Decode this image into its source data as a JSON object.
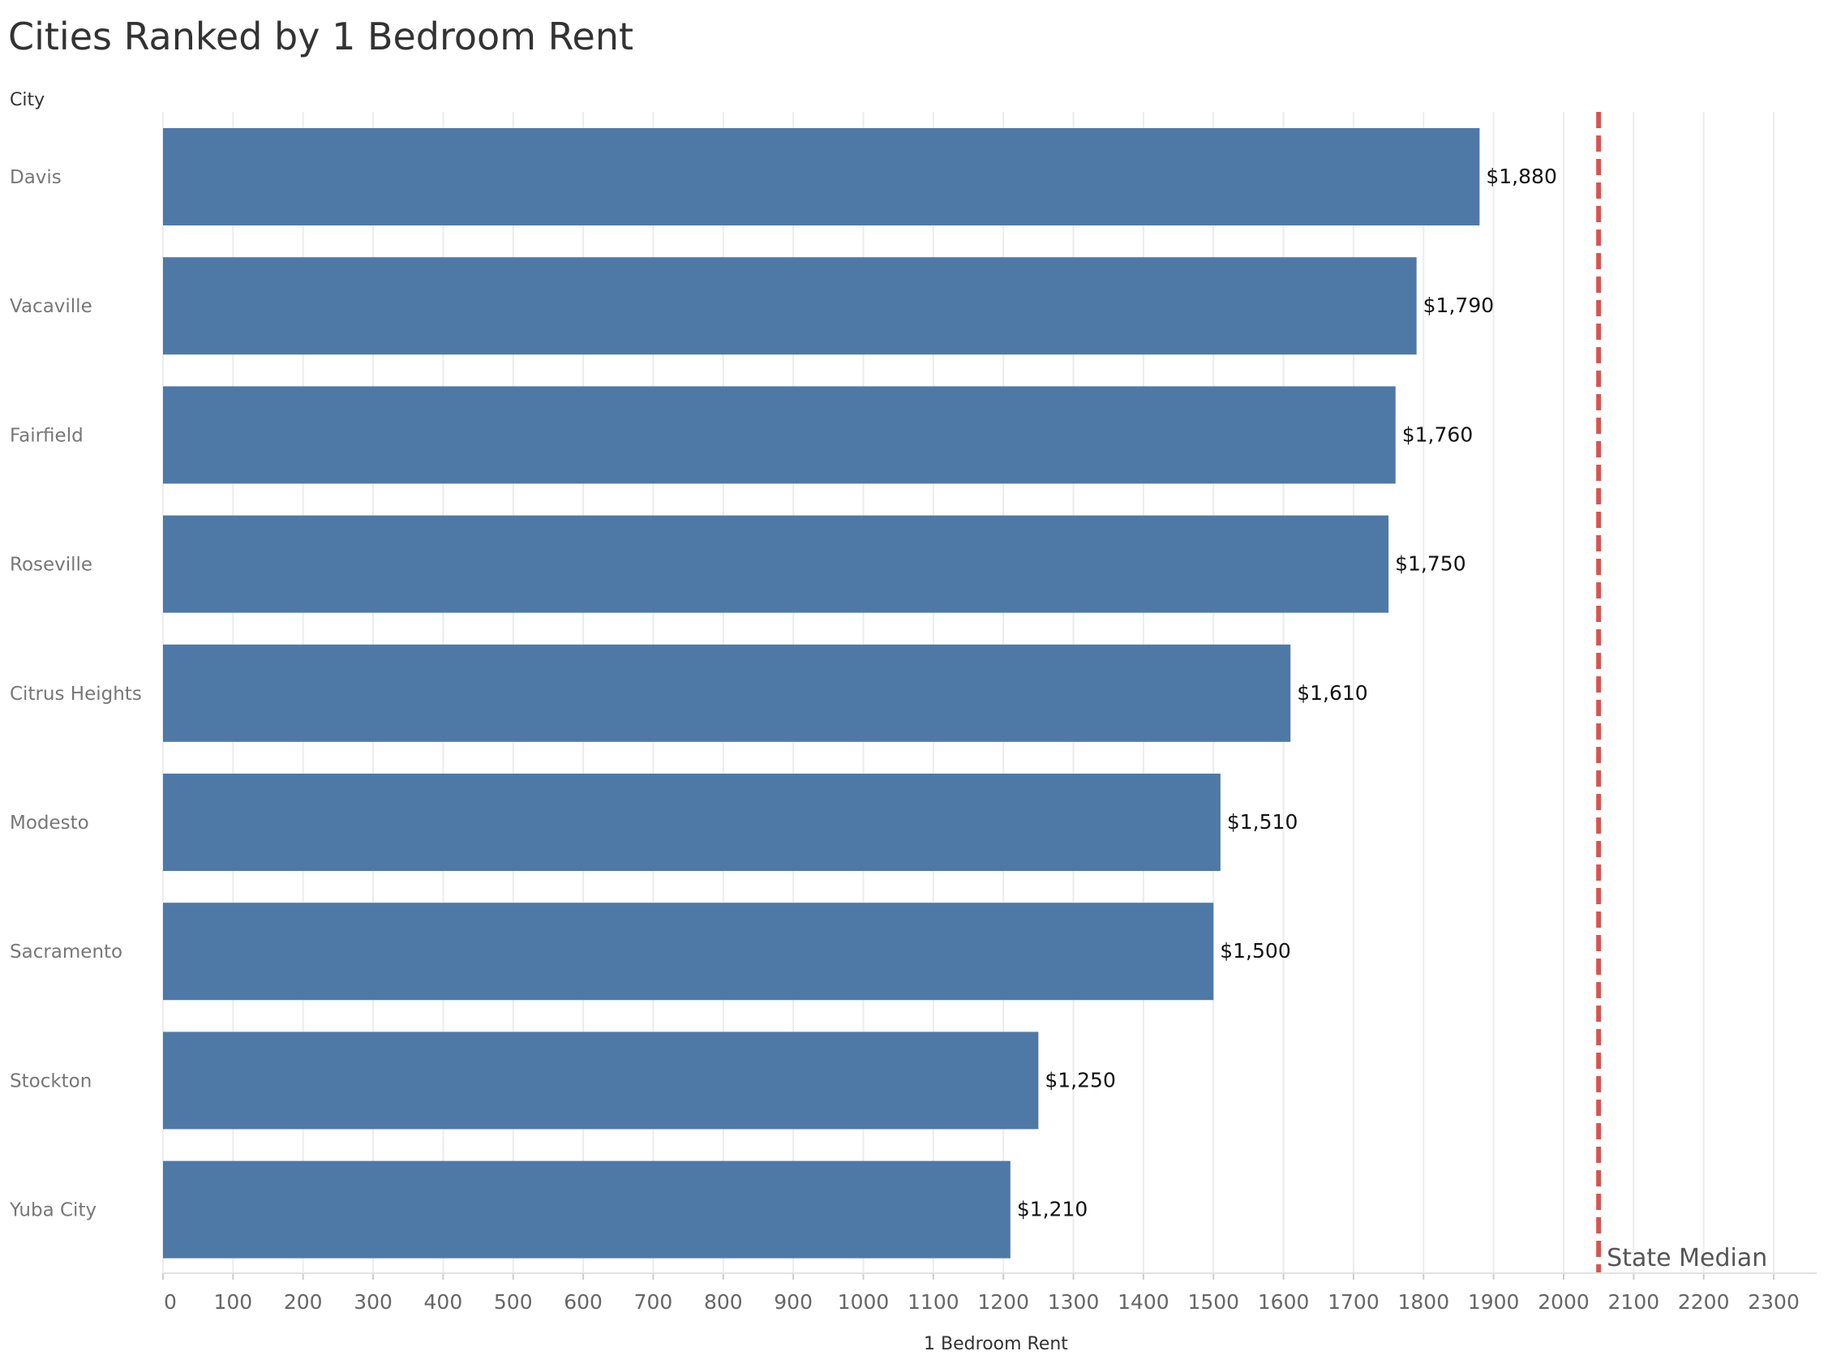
{
  "chart_data": {
    "type": "bar",
    "orientation": "horizontal",
    "title": "Cities Ranked by 1 Bedroom Rent",
    "ylabel": "City",
    "xlabel": "1 Bedroom Rent",
    "categories": [
      "Davis",
      "Vacaville",
      "Fairfield",
      "Roseville",
      "Citrus Heights",
      "Modesto",
      "Sacramento",
      "Stockton",
      "Yuba City"
    ],
    "values": [
      1880,
      1790,
      1760,
      1750,
      1610,
      1510,
      1500,
      1250,
      1210
    ],
    "value_labels": [
      "$1,880",
      "$1,790",
      "$1,760",
      "$1,750",
      "$1,610",
      "$1,510",
      "$1,500",
      "$1,250",
      "$1,210"
    ],
    "xlim": [
      0,
      2400
    ],
    "xticks": [
      0,
      100,
      200,
      300,
      400,
      500,
      600,
      700,
      800,
      900,
      1000,
      1100,
      1200,
      1300,
      1400,
      1500,
      1600,
      1700,
      1800,
      1900,
      2000,
      2100,
      2200,
      2300
    ],
    "grid": true,
    "bar_color": "#4e79a7",
    "reference_line": {
      "label": "State Median",
      "value": 2050,
      "style": "dashed",
      "color": "#d9534f"
    }
  }
}
